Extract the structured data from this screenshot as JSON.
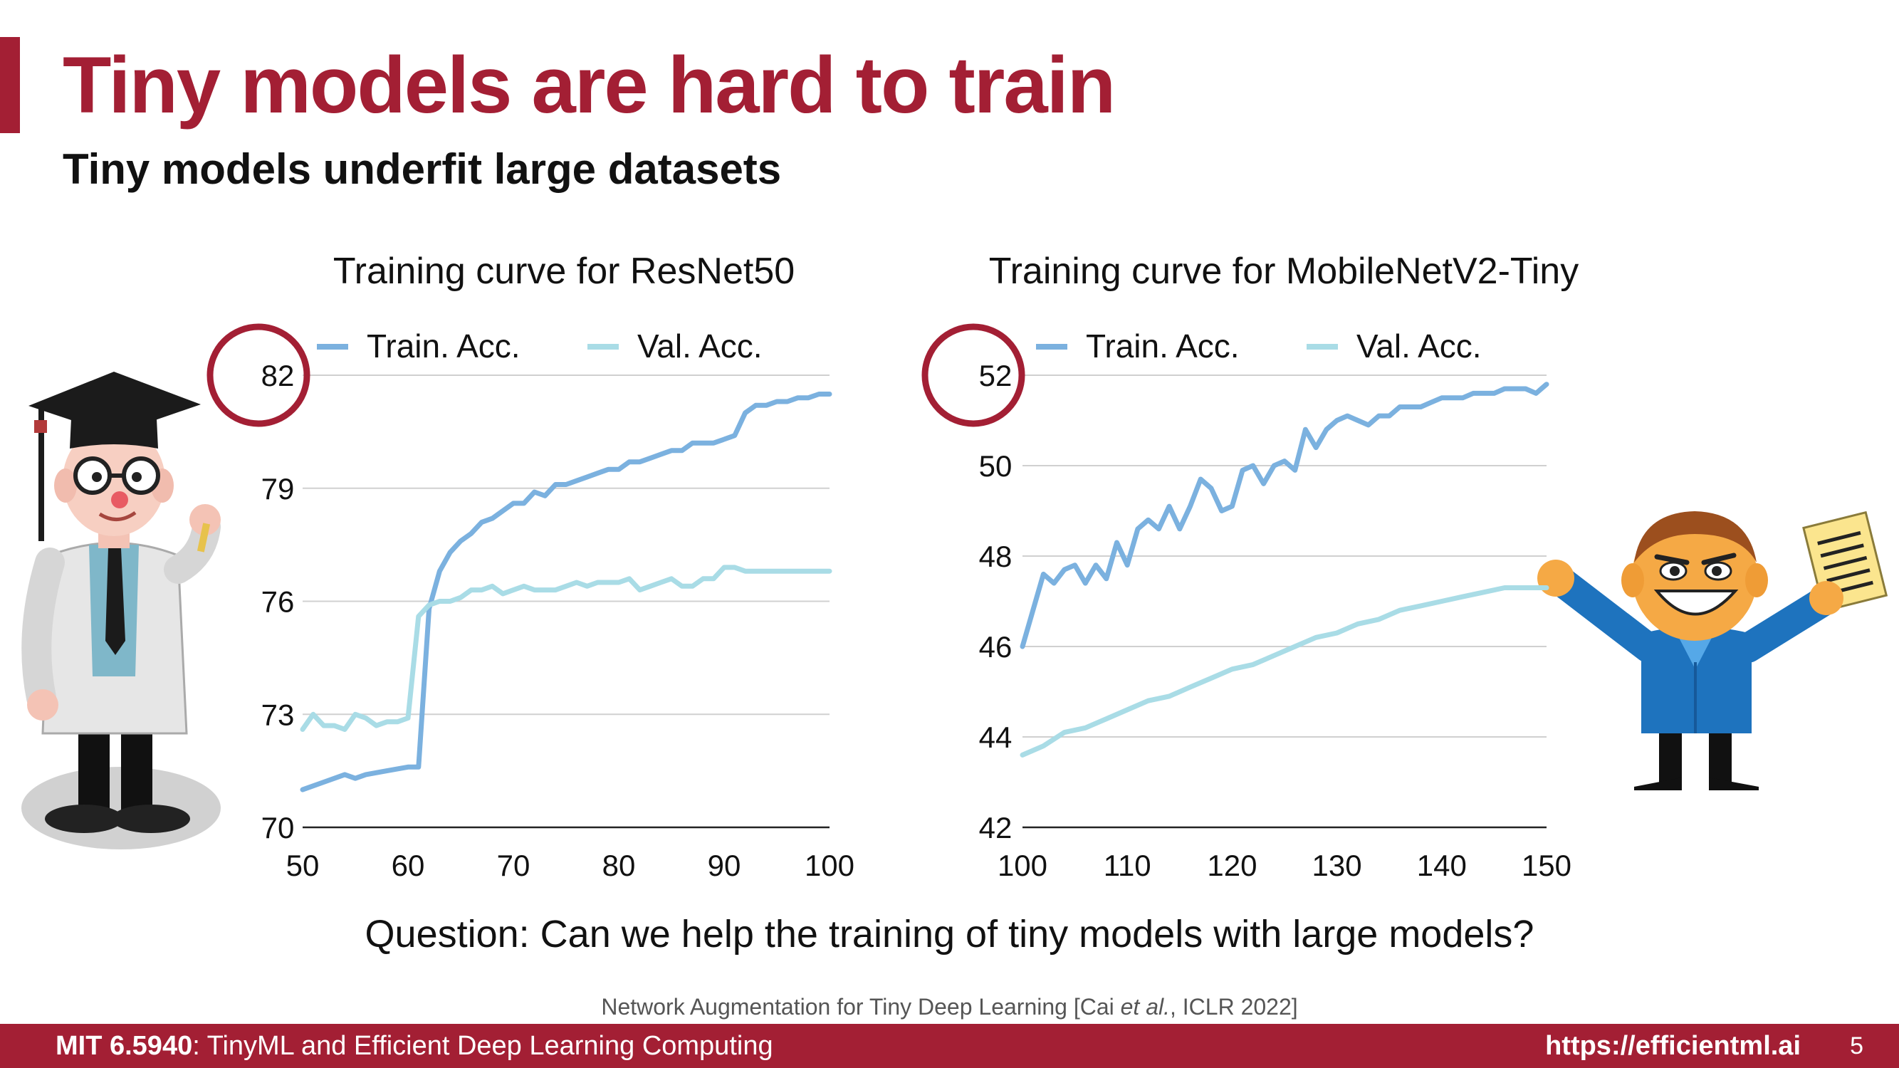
{
  "slide": {
    "title": "Tiny models are hard to train",
    "subtitle": "Tiny models underfit large datasets",
    "question": "Question: Can we help the training of tiny models with large models?",
    "citation_pre": "Network Augmentation for Tiny Deep Learning [Cai ",
    "citation_em": "et al.",
    "citation_post": ", ICLR 2022]",
    "footer_course_bold": "MIT 6.5940",
    "footer_course_rest": ": TinyML and Efficient Deep Learning Computing",
    "footer_url": "https://efficientml.ai",
    "page_number": "5"
  },
  "colors": {
    "accent": "#a31f34",
    "train": "#7bb1df",
    "val": "#a9dce6",
    "highlight_circle": "#a31f34"
  },
  "illustrations": {
    "left": "professor-illustration",
    "right": "happy-student-illustration"
  },
  "chart_data": [
    {
      "type": "line",
      "title": "Training curve for ResNet50",
      "xlim": [
        50,
        100
      ],
      "ylim": [
        70,
        82
      ],
      "xticks": [
        50,
        60,
        70,
        80,
        90,
        100
      ],
      "yticks": [
        70,
        73,
        76,
        79,
        82
      ],
      "highlighted_tick": 82,
      "grid": true,
      "legend": "top",
      "series": [
        {
          "name": "Train. Acc.",
          "color": "#7bb1df",
          "x": [
            50,
            52,
            54,
            55,
            56,
            58,
            60,
            61,
            62,
            63,
            64,
            65,
            66,
            67,
            68,
            69,
            70,
            71,
            72,
            73,
            74,
            75,
            76,
            77,
            78,
            79,
            80,
            81,
            82,
            83,
            84,
            85,
            86,
            87,
            88,
            89,
            90,
            91,
            92,
            93,
            94,
            95,
            96,
            97,
            98,
            99,
            100
          ],
          "y": [
            71.0,
            71.2,
            71.4,
            71.3,
            71.4,
            71.5,
            71.6,
            71.6,
            75.8,
            76.8,
            77.3,
            77.6,
            77.8,
            78.1,
            78.2,
            78.4,
            78.6,
            78.6,
            78.9,
            78.8,
            79.1,
            79.1,
            79.2,
            79.3,
            79.4,
            79.5,
            79.5,
            79.7,
            79.7,
            79.8,
            79.9,
            80.0,
            80.0,
            80.2,
            80.2,
            80.2,
            80.3,
            80.4,
            81.0,
            81.2,
            81.2,
            81.3,
            81.3,
            81.4,
            81.4,
            81.5,
            81.5
          ]
        },
        {
          "name": "Val. Acc.",
          "color": "#a9dce6",
          "x": [
            50,
            51,
            52,
            53,
            54,
            55,
            56,
            57,
            58,
            59,
            60,
            61,
            62,
            63,
            64,
            65,
            66,
            67,
            68,
            69,
            70,
            71,
            72,
            73,
            74,
            75,
            76,
            77,
            78,
            79,
            80,
            81,
            82,
            83,
            84,
            85,
            86,
            87,
            88,
            89,
            90,
            91,
            92,
            93,
            94,
            95,
            96,
            97,
            98,
            99,
            100
          ],
          "y": [
            72.6,
            73.0,
            72.7,
            72.7,
            72.6,
            73.0,
            72.9,
            72.7,
            72.8,
            72.8,
            72.9,
            75.6,
            75.9,
            76.0,
            76.0,
            76.1,
            76.3,
            76.3,
            76.4,
            76.2,
            76.3,
            76.4,
            76.3,
            76.3,
            76.3,
            76.4,
            76.5,
            76.4,
            76.5,
            76.5,
            76.5,
            76.6,
            76.3,
            76.4,
            76.5,
            76.6,
            76.4,
            76.4,
            76.6,
            76.6,
            76.9,
            76.9,
            76.8,
            76.8,
            76.8,
            76.8,
            76.8,
            76.8,
            76.8,
            76.8,
            76.8
          ]
        }
      ]
    },
    {
      "type": "line",
      "title": "Training curve for MobileNetV2-Tiny",
      "xlim": [
        100,
        150
      ],
      "ylim": [
        42,
        52
      ],
      "xticks": [
        100,
        110,
        120,
        130,
        140,
        150
      ],
      "yticks": [
        42,
        44,
        46,
        48,
        50,
        52
      ],
      "highlighted_tick": 52,
      "grid": true,
      "legend": "top",
      "series": [
        {
          "name": "Train. Acc.",
          "color": "#7bb1df",
          "x": [
            100,
            102,
            103,
            104,
            105,
            106,
            107,
            108,
            109,
            110,
            111,
            112,
            113,
            114,
            115,
            116,
            117,
            118,
            119,
            120,
            121,
            122,
            123,
            124,
            125,
            126,
            127,
            128,
            129,
            130,
            131,
            132,
            133,
            134,
            135,
            136,
            137,
            138,
            139,
            140,
            141,
            142,
            143,
            144,
            145,
            146,
            147,
            148,
            149,
            150
          ],
          "y": [
            46.0,
            47.6,
            47.4,
            47.7,
            47.8,
            47.4,
            47.8,
            47.5,
            48.3,
            47.8,
            48.6,
            48.8,
            48.6,
            49.1,
            48.6,
            49.1,
            49.7,
            49.5,
            49.0,
            49.1,
            49.9,
            50.0,
            49.6,
            50.0,
            50.1,
            49.9,
            50.8,
            50.4,
            50.8,
            51.0,
            51.1,
            51.0,
            50.9,
            51.1,
            51.1,
            51.3,
            51.3,
            51.3,
            51.4,
            51.5,
            51.5,
            51.5,
            51.6,
            51.6,
            51.6,
            51.7,
            51.7,
            51.7,
            51.6,
            51.8
          ]
        },
        {
          "name": "Val. Acc.",
          "color": "#a9dce6",
          "x": [
            100,
            102,
            104,
            106,
            108,
            110,
            112,
            114,
            116,
            118,
            120,
            122,
            124,
            126,
            128,
            130,
            132,
            134,
            136,
            138,
            140,
            142,
            144,
            146,
            148,
            150
          ],
          "y": [
            43.6,
            43.8,
            44.1,
            44.2,
            44.4,
            44.6,
            44.8,
            44.9,
            45.1,
            45.3,
            45.5,
            45.6,
            45.8,
            46.0,
            46.2,
            46.3,
            46.5,
            46.6,
            46.8,
            46.9,
            47.0,
            47.1,
            47.2,
            47.3,
            47.3,
            47.3
          ]
        }
      ]
    }
  ]
}
